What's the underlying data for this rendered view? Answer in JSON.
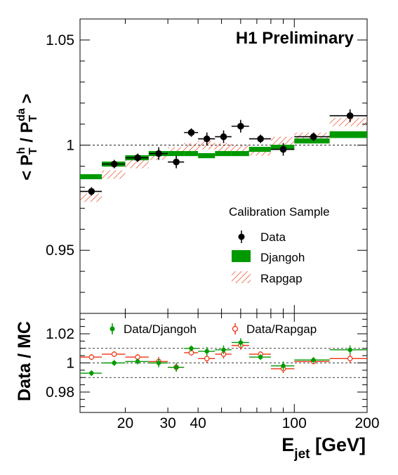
{
  "chart_data": [
    {
      "type": "scatter",
      "title": "H1 Preliminary",
      "ylabel": "< P_T^h / P_T^da >",
      "ylabel_main": "< P",
      "ylabel_sup1": "h",
      "ylabel_sub1": "T",
      "ylabel_mid": " / P",
      "ylabel_sup2": "da",
      "ylabel_sub2": "T",
      "ylabel_end": " >",
      "xscale": "log",
      "xlim": [
        13,
        200
      ],
      "ylim": [
        0.92,
        1.06
      ],
      "yticks": [
        0.95,
        1,
        1.05
      ],
      "ytick_labels": [
        "0.95",
        "1",
        "1.05"
      ],
      "reference_line": 1,
      "legend_title": "Calibration Sample",
      "legend_position": "right",
      "colors": {
        "data": "#000000",
        "djangoh": "#009900",
        "rapgap": "#ee3311"
      },
      "series": [
        {
          "name": "Data",
          "bins": [
            [
              13,
              16
            ],
            [
              16,
              20
            ],
            [
              20,
              25
            ],
            [
              25,
              30
            ],
            [
              30,
              35
            ],
            [
              35,
              40
            ],
            [
              40,
              47
            ],
            [
              47,
              55
            ],
            [
              55,
              65
            ],
            [
              65,
              80
            ],
            [
              80,
              100
            ],
            [
              100,
              140
            ],
            [
              140,
              200
            ]
          ],
          "x": [
            14.5,
            18,
            22.5,
            27.5,
            32.5,
            37.5,
            43.5,
            51,
            60,
            72.5,
            90,
            120,
            170
          ],
          "y": [
            0.978,
            0.991,
            0.994,
            0.996,
            0.992,
            1.006,
            1.003,
            1.004,
            1.009,
            1.003,
            0.998,
            1.004,
            1.014
          ],
          "yerr": [
            0.002,
            0.002,
            0.002,
            0.003,
            0.003,
            0.002,
            0.003,
            0.003,
            0.003,
            0.002,
            0.003,
            0.002,
            0.003
          ]
        },
        {
          "name": "Djangoh",
          "bins": [
            [
              13,
              16
            ],
            [
              16,
              20
            ],
            [
              20,
              25
            ],
            [
              25,
              30
            ],
            [
              30,
              35
            ],
            [
              35,
              40
            ],
            [
              40,
              47
            ],
            [
              47,
              55
            ],
            [
              55,
              65
            ],
            [
              65,
              80
            ],
            [
              80,
              100
            ],
            [
              100,
              140
            ],
            [
              140,
              200
            ]
          ],
          "y": [
            0.985,
            0.991,
            0.994,
            0.996,
            0.996,
            0.996,
            0.995,
            0.996,
            0.996,
            0.998,
            0.999,
            1.002,
            1.005
          ],
          "band": [
            0.0012,
            0.0012,
            0.0012,
            0.0012,
            0.0012,
            0.0012,
            0.0012,
            0.0012,
            0.0012,
            0.0012,
            0.0012,
            0.0012,
            0.0016
          ]
        },
        {
          "name": "Rapgap",
          "bins": [
            [
              13,
              16
            ],
            [
              16,
              20
            ],
            [
              20,
              25
            ],
            [
              25,
              30
            ],
            [
              30,
              35
            ],
            [
              35,
              40
            ],
            [
              40,
              47
            ],
            [
              47,
              55
            ],
            [
              55,
              65
            ],
            [
              65,
              80
            ],
            [
              80,
              100
            ],
            [
              100,
              140
            ],
            [
              140,
              200
            ]
          ],
          "y": [
            0.975,
            0.986,
            0.991,
            0.995,
            0.997,
            0.999,
            1.0,
            0.999,
            0.998,
            0.997,
            1.002,
            1.004,
            1.011
          ],
          "band": [
            0.002,
            0.002,
            0.002,
            0.002,
            0.002,
            0.002,
            0.002,
            0.002,
            0.002,
            0.002,
            0.002,
            0.002,
            0.002
          ]
        }
      ]
    },
    {
      "type": "scatter",
      "title": "",
      "ylabel": "Data / MC",
      "xlabel": "E_jet [GeV]",
      "xlabel_main": "E",
      "xlabel_sub": "jet",
      "xlabel_unit": " [GeV]",
      "xscale": "log",
      "xlim": [
        13,
        200
      ],
      "ylim": [
        0.966,
        1.034
      ],
      "yticks": [
        0.98,
        1,
        1.02
      ],
      "ytick_labels": [
        "0.98",
        "1",
        "1.02"
      ],
      "xticks": [
        20,
        30,
        40,
        100,
        200
      ],
      "xtick_labels": [
        "20",
        "30",
        "40",
        "100",
        "200"
      ],
      "reference_lines": [
        0.99,
        1,
        1.01
      ],
      "legend_position": "top",
      "colors": {
        "djangoh": "#009900",
        "rapgap": "#ee3311"
      },
      "series": [
        {
          "name": "Data/Djangoh",
          "x": [
            14.5,
            18,
            22.5,
            27.5,
            32.5,
            37.5,
            43.5,
            51,
            60,
            72.5,
            90,
            120,
            170
          ],
          "y": [
            0.993,
            1.0,
            1.001,
            1.0,
            0.997,
            1.01,
            1.008,
            1.009,
            1.014,
            1.004,
            0.998,
            1.002,
            1.009
          ],
          "yerr": [
            0.002,
            0.002,
            0.002,
            0.003,
            0.003,
            0.002,
            0.003,
            0.003,
            0.003,
            0.002,
            0.003,
            0.002,
            0.003
          ]
        },
        {
          "name": "Data/Rapgap",
          "x": [
            14.5,
            18,
            22.5,
            27.5,
            32.5,
            37.5,
            43.5,
            51,
            60,
            72.5,
            90,
            120,
            170
          ],
          "y": [
            1.004,
            1.006,
            1.004,
            1.001,
            0.997,
            1.007,
            1.003,
            1.006,
            1.012,
            1.006,
            0.996,
            1.001,
            1.003
          ],
          "yerr": [
            0.002,
            0.002,
            0.002,
            0.003,
            0.003,
            0.002,
            0.003,
            0.003,
            0.003,
            0.002,
            0.003,
            0.002,
            0.003
          ]
        }
      ]
    }
  ]
}
